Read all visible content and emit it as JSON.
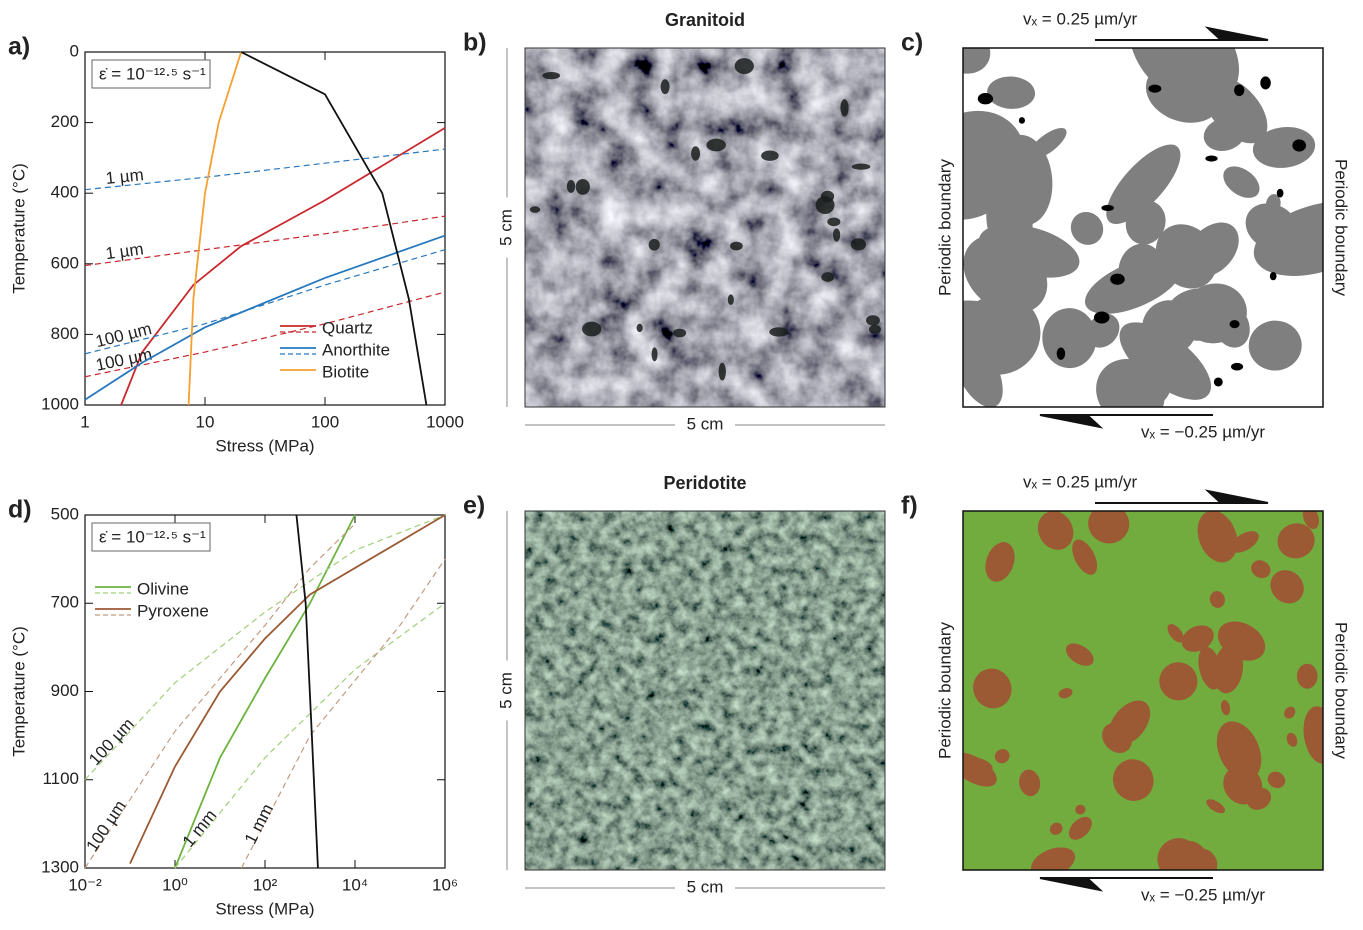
{
  "chart_data": [
    {
      "type": "line",
      "panel": "a)",
      "annotation": "ε̇ = 10⁻¹²·⁵ s⁻¹",
      "xlabel": "Stress (MPa)",
      "ylabel": "Temperature (°C)",
      "xscale": "log",
      "y_inverted": true,
      "xlim": [
        1,
        1000
      ],
      "ylim": [
        0,
        1000
      ],
      "xticks": [
        1,
        10,
        100,
        1000
      ],
      "yticks": [
        0,
        200,
        400,
        600,
        800,
        1000
      ],
      "legend": "lower right",
      "series": [
        {
          "name": "Quartz",
          "color": "#c8282d",
          "x": [
            2,
            3,
            8,
            20,
            100,
            1000
          ],
          "values": [
            1000,
            850,
            660,
            550,
            420,
            215
          ]
        },
        {
          "color": "#c8282d",
          "dashed": true,
          "label": "1 µm",
          "x": [
            1,
            10,
            100,
            1000
          ],
          "values": [
            605,
            560,
            515,
            465
          ]
        },
        {
          "color": "#c8282d",
          "dashed": true,
          "label": "100 µm",
          "x": [
            1,
            10,
            100,
            1000
          ],
          "values": [
            920,
            850,
            770,
            680
          ]
        },
        {
          "name": "Anorthite",
          "color": "#2878be",
          "x": [
            1,
            3,
            10,
            100,
            1000
          ],
          "values": [
            985,
            880,
            780,
            640,
            520
          ]
        },
        {
          "color": "#2878be",
          "dashed": true,
          "label": "1 µm",
          "x": [
            1,
            10,
            100,
            1000
          ],
          "values": [
            390,
            355,
            315,
            275
          ]
        },
        {
          "color": "#2878be",
          "dashed": true,
          "label": "100 µm",
          "x": [
            1,
            10,
            100,
            1000
          ],
          "values": [
            855,
            770,
            660,
            560
          ]
        },
        {
          "name": "Biotite",
          "color": "#f5a031",
          "x": [
            7.3,
            8,
            10,
            13,
            20
          ],
          "values": [
            1000,
            700,
            400,
            200,
            0
          ]
        },
        {
          "color": "#111111",
          "x": [
            20,
            100,
            300,
            500,
            700
          ],
          "values": [
            0,
            120,
            400,
            700,
            1000
          ]
        }
      ]
    },
    {
      "type": "line",
      "panel": "d)",
      "annotation": "ε̇ = 10⁻¹²·⁵ s⁻¹",
      "xlabel": "Stress (MPa)",
      "ylabel": "Temperature (°C)",
      "xscale": "log",
      "y_inverted": true,
      "xlim": [
        0.01,
        1000000
      ],
      "ylim": [
        500,
        1300
      ],
      "xticks": [
        {
          "value": 0.01,
          "label": "10⁻²"
        },
        {
          "value": 1,
          "label": "10⁰"
        },
        {
          "value": 100,
          "label": "10²"
        },
        {
          "value": 10000,
          "label": "10⁴"
        },
        {
          "value": 1000000,
          "label": "10⁶"
        }
      ],
      "yticks": [
        500,
        700,
        900,
        1100,
        1300
      ],
      "legend": "upper left",
      "series": [
        {
          "name": "Olivine",
          "color": "#6cb33f",
          "x": [
            1,
            10,
            100,
            1000,
            10000
          ],
          "values": [
            1300,
            1050,
            870,
            700,
            500
          ]
        },
        {
          "color": "#9fcf7a",
          "dashed": true,
          "label": "100 µm",
          "x": [
            0.01,
            1,
            100,
            10000,
            1000000
          ],
          "values": [
            1100,
            880,
            720,
            580,
            500
          ]
        },
        {
          "color": "#9fcf7a",
          "dashed": true,
          "label": "1 mm",
          "x": [
            1,
            100,
            10000,
            1000000
          ],
          "values": [
            1300,
            1050,
            850,
            700
          ]
        },
        {
          "name": "Pyroxene",
          "color": "#9b5a34",
          "x": [
            0.1,
            1,
            10,
            100,
            1000,
            1000000
          ],
          "values": [
            1290,
            1070,
            900,
            780,
            680,
            500
          ]
        },
        {
          "color": "#c49a80",
          "dashed": true,
          "label": "100 µm",
          "x": [
            0.01,
            1,
            100,
            1000,
            10000
          ],
          "values": [
            1300,
            990,
            750,
            620,
            520
          ]
        },
        {
          "color": "#c49a80",
          "dashed": true,
          "label": "1 mm",
          "x": [
            30,
            1000,
            100000,
            1000000
          ],
          "values": [
            1300,
            1000,
            750,
            600
          ]
        },
        {
          "color": "#111111",
          "x": [
            500,
            800,
            1100,
            1500
          ],
          "values": [
            500,
            700,
            1000,
            1300
          ]
        }
      ]
    }
  ],
  "panels": [
    {
      "letter": "b)",
      "title": "Granitoid",
      "scale_x": "5 cm",
      "scale_y": "5 cm"
    },
    {
      "letter": "c)",
      "top_velocity": "vₓ = 0.25 µm/yr",
      "bottom_velocity": "vₓ = −0.25 µm/yr",
      "left_boundary": "Periodic boundary",
      "right_boundary": "Periodic boundary"
    },
    {
      "letter": "e)",
      "title": "Peridotite",
      "scale_x": "5 cm",
      "scale_y": "5 cm"
    },
    {
      "letter": "f)",
      "top_velocity": "vₓ = 0.25 µm/yr",
      "bottom_velocity": "vₓ = −0.25 µm/yr",
      "left_boundary": "Periodic boundary",
      "right_boundary": "Periodic boundary"
    }
  ]
}
